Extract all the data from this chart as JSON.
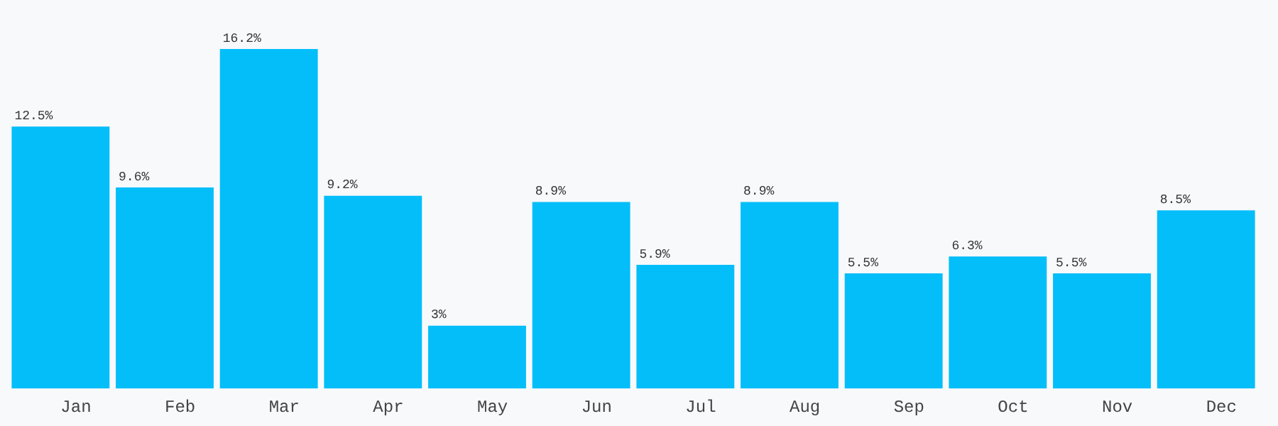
{
  "chart_data": {
    "type": "bar",
    "categories": [
      "Jan",
      "Feb",
      "Mar",
      "Apr",
      "May",
      "Jun",
      "Jul",
      "Aug",
      "Sep",
      "Oct",
      "Nov",
      "Dec"
    ],
    "values": [
      12.5,
      9.6,
      16.2,
      9.2,
      3,
      8.9,
      5.9,
      8.9,
      5.5,
      6.3,
      5.5,
      8.5
    ],
    "value_labels": [
      "12.5%",
      "9.6%",
      "16.2%",
      "9.2%",
      "3%",
      "8.9%",
      "5.9%",
      "8.9%",
      "5.5%",
      "6.3%",
      "5.5%",
      "8.5%"
    ],
    "color": "#04befa",
    "grid": false,
    "legend": false
  }
}
